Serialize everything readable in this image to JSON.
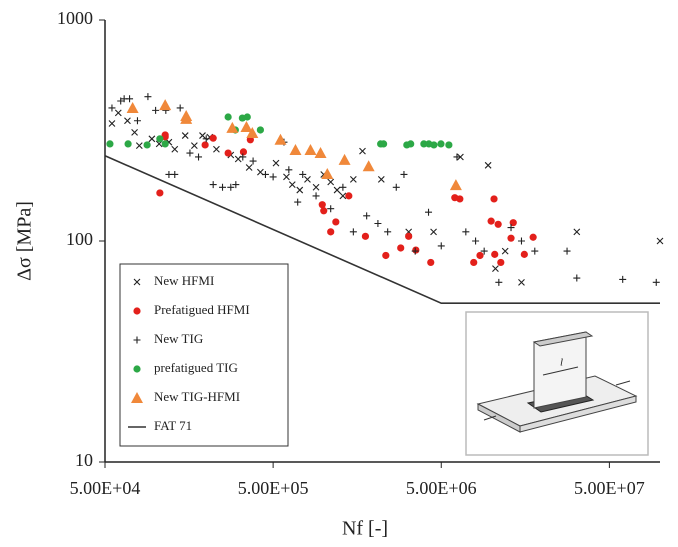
{
  "chart_data": {
    "type": "scatter",
    "xlabel": "Nf  [-]",
    "ylabel": "Δσ [MPa]",
    "xscale": "log",
    "yscale": "log",
    "xlim": [
      50000,
      100000000
    ],
    "ylim": [
      10,
      1000
    ],
    "xticks": [
      {
        "value": 50000,
        "label": "5.00E+04"
      },
      {
        "value": 500000,
        "label": "5.00E+05"
      },
      {
        "value": 5000000,
        "label": "5.00E+06"
      },
      {
        "value": 50000000,
        "label": "5.00E+07"
      }
    ],
    "yticks": [
      10,
      100,
      1000
    ],
    "legend": "lower left",
    "series": [
      {
        "name": "New HFMI",
        "marker": "x",
        "color": "#222222",
        "x": [
          55000,
          60000,
          68000,
          75000,
          80000,
          95000,
          105000,
          120000,
          130000,
          150000,
          170000,
          190000,
          210000,
          230000,
          280000,
          310000,
          360000,
          420000,
          520000,
          600000,
          650000,
          720000,
          800000,
          900000,
          1000000,
          1100000,
          1200000,
          1300000,
          1500000,
          1700000,
          2200000,
          3200000,
          4500000,
          6500000,
          9500000,
          10500000,
          12000000,
          15000000,
          32000000,
          100000000
        ],
        "values": [
          340,
          380,
          350,
          310,
          270,
          290,
          275,
          280,
          260,
          300,
          270,
          300,
          295,
          260,
          245,
          235,
          215,
          205,
          225,
          195,
          180,
          170,
          190,
          175,
          200,
          185,
          170,
          160,
          190,
          255,
          190,
          110,
          110,
          240,
          220,
          75,
          90,
          65,
          110,
          100
        ]
      },
      {
        "name": "Prefatigued HFMI",
        "marker": "circle",
        "color": "#e3201b",
        "x": [
          106000,
          114000,
          114000,
          197000,
          220000,
          270000,
          333000,
          366000,
          980000,
          1000000,
          1100000,
          1180000,
          1410000,
          1770000,
          2340000,
          2870000,
          3200000,
          3530000,
          4330000,
          6020000,
          6450000,
          7800000,
          8500000,
          9900000,
          10300000,
          10900000,
          13000000,
          10400000,
          11300000,
          13400000,
          15600000,
          17600000
        ],
        "values": [
          165,
          296,
          302,
          272,
          292,
          250,
          253,
          287,
          146,
          137,
          110,
          122,
          160,
          105,
          86,
          93,
          105,
          91,
          80,
          157,
          155,
          80,
          86,
          123,
          155,
          119,
          103,
          87,
          80,
          121,
          87,
          104
        ]
      },
      {
        "name": "New TIG",
        "marker": "plus",
        "color": "#222222",
        "x": [
          55000,
          62000,
          65000,
          70000,
          78000,
          90000,
          100000,
          115000,
          120000,
          130000,
          140000,
          160000,
          180000,
          200000,
          220000,
          250000,
          280000,
          300000,
          330000,
          380000,
          450000,
          500000,
          580000,
          620000,
          700000,
          750000,
          900000,
          1100000,
          1300000,
          1500000,
          1800000,
          2100000,
          2400000,
          2700000,
          3000000,
          3500000,
          4200000,
          5000000,
          6200000,
          7000000,
          8000000,
          9000000,
          11000000,
          13000000,
          15000000,
          18000000,
          28000000,
          32000000,
          60000000,
          95000000
        ],
        "values": [
          400,
          430,
          440,
          440,
          350,
          450,
          390,
          390,
          200,
          200,
          400,
          250,
          240,
          290,
          180,
          175,
          175,
          180,
          240,
          230,
          200,
          195,
          280,
          210,
          150,
          200,
          160,
          140,
          175,
          110,
          130,
          120,
          110,
          175,
          200,
          90,
          135,
          95,
          240,
          110,
          100,
          90,
          65,
          115,
          100,
          90,
          90,
          68,
          67,
          65
        ]
      },
      {
        "name": "prefatigued TIG",
        "marker": "circle",
        "color": "#2ca846",
        "x": [
          53500,
          68600,
          89000,
          106000,
          114000,
          270000,
          298000,
          328000,
          351000,
          420000,
          2180000,
          2270000,
          3120000,
          3290000,
          3940000,
          4220000,
          4520000,
          4980000,
          5550000
        ],
        "values": [
          275,
          275,
          272,
          290,
          275,
          364,
          318,
          360,
          364,
          318,
          275,
          275,
          272,
          275,
          275,
          275,
          272,
          275,
          272
        ]
      },
      {
        "name": "New TIG-HFMI",
        "marker": "triangle",
        "color": "#f0883a",
        "x": [
          73000,
          114000,
          152000,
          152000,
          286000,
          347000,
          376000,
          553000,
          679000,
          834000,
          957000,
          1050000,
          1330000,
          1850000,
          6110000
        ],
        "values": [
          400,
          412,
          368,
          357,
          325,
          328,
          308,
          287,
          258,
          258,
          250,
          201,
          233,
          218,
          179
        ]
      },
      {
        "name": "FAT 71",
        "marker": "line",
        "color": "#333333",
        "x": [
          50000,
          5000000,
          100000000
        ],
        "values": [
          243,
          52.3,
          52.3
        ]
      }
    ]
  },
  "inset_label": "l"
}
